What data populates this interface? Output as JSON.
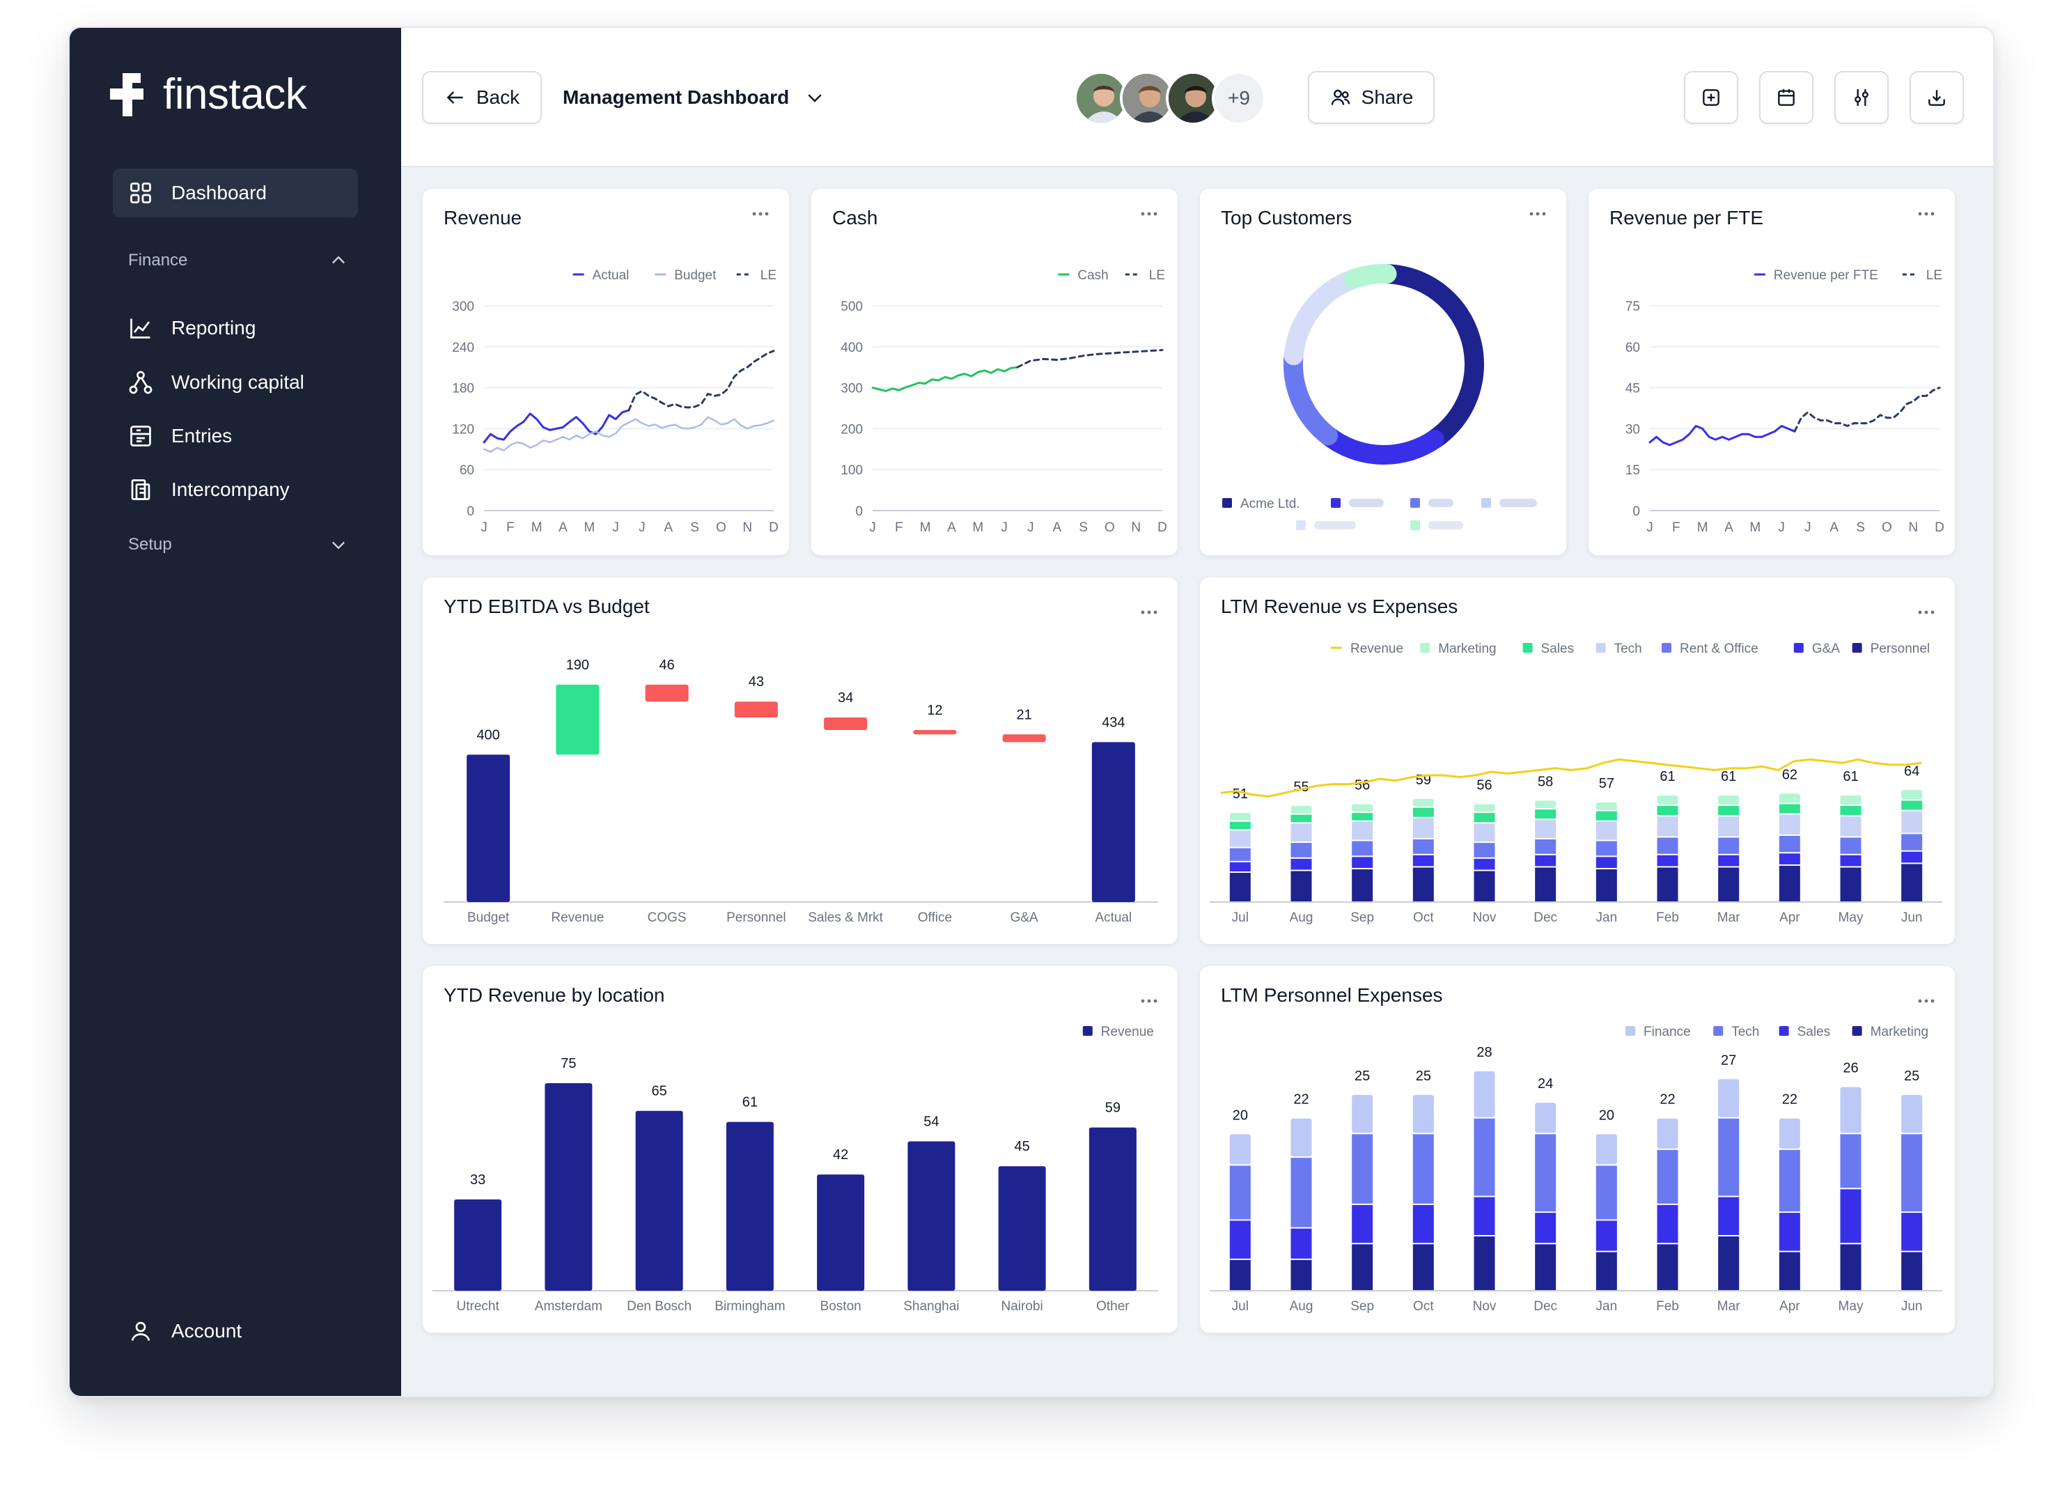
{
  "app": {
    "name": "finstack"
  },
  "sidebar": {
    "dashboard": "Dashboard",
    "finance": "Finance",
    "items": [
      "Reporting",
      "Working capital",
      "Entries",
      "Intercompany"
    ],
    "setup": "Setup",
    "account": "Account"
  },
  "topbar": {
    "back": "Back",
    "dashboard_name": "Management Dashboard",
    "collaborators_extra": "+9",
    "share": "Share",
    "actions": [
      "add-widget-icon",
      "calendar-icon",
      "filter-sliders-icon",
      "download-icon"
    ]
  },
  "colors": {
    "navy": "#1f2390",
    "indigo": "#3730e8",
    "periwinkle": "#6b79f0",
    "lavender": "#bcc7f7",
    "green": "#2ee28f",
    "mint": "#b4f5d3",
    "red": "#f95a5a",
    "yellow": "#f5cf1a",
    "light_blue": "#a9bcef"
  },
  "cards": {
    "revenue": {
      "title": "Revenue",
      "chart_data": {
        "type": "line",
        "title": "Revenue",
        "legend": [
          "Actual",
          "Budget",
          "LE"
        ],
        "ylim": [
          0,
          300
        ],
        "yticks": [
          0,
          60,
          120,
          180,
          240,
          300
        ],
        "xticks": [
          "J",
          "F",
          "M",
          "A",
          "M",
          "J",
          "J",
          "A",
          "S",
          "O",
          "N",
          "D"
        ],
        "series": [
          {
            "name": "Actual",
            "x": [
              0,
              0.25,
              0.5,
              0.75,
              1,
              1.25,
              1.5,
              1.75,
              2,
              2.25,
              2.5,
              2.75,
              3,
              3.25,
              3.5,
              3.75,
              4,
              4.25,
              4.5,
              4.75,
              5,
              5.25,
              5.5
            ],
            "values": [
              100,
              112,
              106,
              104,
              116,
              124,
              130,
              142,
              134,
              122,
              118,
              120,
              122,
              130,
              137,
              128,
              116,
              112,
              123,
              140,
              134,
              144,
              147
            ]
          },
          {
            "name": "Budget",
            "x": [
              0,
              0.25,
              0.5,
              0.75,
              1,
              1.25,
              1.5,
              1.75,
              2,
              2.25,
              2.5,
              2.75,
              3,
              3.25,
              3.5,
              3.75,
              4,
              4.25,
              4.5,
              4.75,
              5,
              5.25,
              5.5,
              5.75,
              6,
              6.25,
              6.5,
              6.75,
              7,
              7.25,
              7.5,
              7.75,
              8,
              8.25,
              8.5,
              8.75,
              9,
              9.25,
              9.5,
              9.75,
              10,
              10.25,
              10.5,
              10.75,
              11
            ],
            "values": [
              90,
              86,
              92,
              88,
              96,
              100,
              98,
              92,
              96,
              103,
              100,
              104,
              108,
              104,
              110,
              106,
              112,
              116,
              110,
              108,
              113,
              124,
              129,
              134,
              128,
              124,
              126,
              121,
              124,
              126,
              121,
              120,
              122,
              126,
              137,
              132,
              126,
              128,
              134,
              125,
              120,
              124,
              125,
              128,
              132
            ]
          },
          {
            "name": "LE",
            "x": [
              5.5,
              5.75,
              6,
              6.25,
              6.5,
              6.75,
              7,
              7.25,
              7.5,
              7.75,
              8,
              8.25,
              8.5,
              8.75,
              9,
              9.25,
              9.5,
              9.75,
              10,
              10.25,
              10.5,
              10.75,
              11
            ],
            "values": [
              147,
              170,
              175,
              168,
              164,
              158,
              153,
              156,
              152,
              151,
              152,
              156,
              171,
              168,
              170,
              178,
              196,
              205,
              210,
              218,
              224,
              230,
              234
            ]
          }
        ]
      }
    },
    "cash": {
      "title": "Cash",
      "chart_data": {
        "type": "line",
        "title": "Cash",
        "legend": [
          "Cash",
          "LE"
        ],
        "ylim": [
          0,
          500
        ],
        "yticks": [
          0,
          100,
          200,
          300,
          400,
          500
        ],
        "xticks": [
          "J",
          "F",
          "M",
          "A",
          "M",
          "J",
          "J",
          "A",
          "S",
          "O",
          "N",
          "D"
        ],
        "series": [
          {
            "name": "Cash",
            "x": [
              0,
              0.25,
              0.5,
              0.75,
              1,
              1.25,
              1.5,
              1.75,
              2,
              2.25,
              2.5,
              2.75,
              3,
              3.25,
              3.5,
              3.75,
              4,
              4.25,
              4.5,
              4.75,
              5,
              5.25,
              5.5
            ],
            "values": [
              300,
              296,
              292,
              298,
              294,
              301,
              306,
              312,
              310,
              320,
              318,
              326,
              322,
              330,
              334,
              328,
              338,
              342,
              336,
              345,
              340,
              348,
              350
            ]
          },
          {
            "name": "LE",
            "x": [
              5.5,
              6,
              6.5,
              7,
              7.5,
              8,
              8.5,
              9,
              9.5,
              10,
              10.5,
              11
            ],
            "values": [
              350,
              366,
              370,
              368,
              372,
              378,
              382,
              384,
              386,
              388,
              390,
              392
            ]
          }
        ]
      }
    },
    "top_customers": {
      "title": "Top Customers",
      "chart_data": {
        "type": "pie",
        "title": "Top Customers",
        "legend": [
          "Acme Ltd."
        ],
        "values": [
          40,
          20,
          16,
          18,
          6
        ],
        "slice_colors": [
          "#1f2390",
          "#3730e8",
          "#6b79f0",
          "#d5ddf9",
          "#b4f5d3"
        ]
      }
    },
    "revenue_per_fte": {
      "title": "Revenue per FTE",
      "chart_data": {
        "type": "line",
        "title": "Revenue per FTE",
        "legend": [
          "Revenue per FTE",
          "LE"
        ],
        "ylim": [
          0,
          75
        ],
        "yticks": [
          0,
          15,
          30,
          45,
          60,
          75
        ],
        "xticks": [
          "J",
          "F",
          "M",
          "A",
          "M",
          "J",
          "J",
          "A",
          "S",
          "O",
          "N",
          "D"
        ],
        "series": [
          {
            "name": "Revenue per FTE",
            "x": [
              0,
              0.25,
              0.5,
              0.75,
              1,
              1.25,
              1.5,
              1.75,
              2,
              2.25,
              2.5,
              2.75,
              3,
              3.25,
              3.5,
              3.75,
              4,
              4.25,
              4.5,
              4.75,
              5,
              5.25,
              5.5
            ],
            "values": [
              25,
              27,
              25,
              24,
              25,
              26,
              28,
              31,
              30,
              27,
              26,
              27,
              26,
              27,
              28,
              28,
              27,
              27,
              28,
              29,
              31,
              30,
              29
            ]
          },
          {
            "name": "LE",
            "x": [
              5.5,
              5.75,
              6,
              6.25,
              6.5,
              6.75,
              7,
              7.25,
              7.5,
              7.75,
              8,
              8.25,
              8.5,
              8.75,
              9,
              9.25,
              9.5,
              9.75,
              10,
              10.25,
              10.5,
              10.75,
              11
            ],
            "values": [
              29,
              34,
              36,
              34,
              33,
              33,
              32,
              32,
              31,
              32,
              32,
              32,
              33,
              35,
              34,
              34,
              36,
              39,
              40,
              42,
              42,
              44,
              45
            ]
          }
        ]
      }
    },
    "ytd_ebitda": {
      "title": "YTD EBITDA vs Budget",
      "chart_data": {
        "type": "bar",
        "title": "YTD EBITDA vs Budget",
        "categories": [
          "Budget",
          "Revenue",
          "COGS",
          "Personnel",
          "Sales & Mrkt",
          "Office",
          "G&A",
          "Actual"
        ],
        "values": [
          400,
          190,
          46,
          43,
          34,
          12,
          21,
          434
        ],
        "kind": [
          "total",
          "increase",
          "decrease",
          "decrease",
          "decrease",
          "decrease",
          "decrease",
          "total"
        ],
        "ylim": [
          0,
          620
        ]
      }
    },
    "ltm_rev_exp": {
      "title": "LTM Revenue vs Expenses",
      "chart_data": {
        "type": "bar",
        "title": "LTM Revenue vs Expenses",
        "legend": [
          "Revenue",
          "Marketing",
          "Sales",
          "Tech",
          "Rent & Office",
          "G&A",
          "Personnel"
        ],
        "categories": [
          "Jul",
          "Aug",
          "Sep",
          "Oct",
          "Nov",
          "Dec",
          "Jan",
          "Feb",
          "Mar",
          "Apr",
          "May",
          "Jun"
        ],
        "totals": [
          51,
          55,
          56,
          59,
          56,
          58,
          57,
          61,
          61,
          62,
          61,
          64
        ],
        "series": [
          {
            "name": "Personnel",
            "values": [
              17,
              18,
              19,
              20,
              18,
              20,
              19,
              20,
              20,
              21,
              20,
              22
            ]
          },
          {
            "name": "G&A",
            "values": [
              6,
              7,
              7,
              7,
              7,
              7,
              7,
              7,
              7,
              7,
              7,
              7
            ]
          },
          {
            "name": "Rent & Office",
            "values": [
              8,
              9,
              9,
              9,
              9,
              9,
              9,
              10,
              10,
              10,
              10,
              10
            ]
          },
          {
            "name": "Tech",
            "values": [
              10,
              11,
              11,
              12,
              11,
              11,
              11,
              12,
              12,
              12,
              12,
              13
            ]
          },
          {
            "name": "Sales",
            "values": [
              5,
              5,
              5,
              6,
              6,
              6,
              6,
              6,
              6,
              6,
              6,
              6
            ]
          },
          {
            "name": "Marketing",
            "values": [
              5,
              5,
              5,
              5,
              5,
              5,
              5,
              6,
              6,
              6,
              6,
              6
            ]
          }
        ],
        "revenue_line": {
          "name": "Revenue",
          "x": [
            0,
            0.25,
            0.5,
            0.75,
            1,
            1.25,
            1.5,
            1.75,
            2,
            2.25,
            2.5,
            2.75,
            3,
            3.25,
            3.5,
            3.75,
            4,
            4.25,
            4.5,
            4.75,
            5,
            5.25,
            5.5,
            5.75,
            6,
            6.25,
            6.5,
            6.75,
            7,
            7.25,
            7.5,
            7.75,
            8,
            8.25,
            8.5,
            8.75,
            9,
            9.25,
            9.5,
            9.75,
            10,
            10.25,
            10.5,
            10.75,
            11
          ],
          "values": [
            62,
            63,
            61,
            60,
            62,
            64,
            66,
            67,
            67,
            68,
            70,
            69,
            71,
            72,
            72,
            71,
            72,
            74,
            73,
            74,
            75,
            76,
            75,
            76,
            79,
            81,
            80,
            79,
            78,
            77,
            76,
            75,
            76,
            76,
            77,
            75,
            80,
            81,
            80,
            79,
            81,
            79,
            78,
            78,
            79
          ]
        },
        "ylim": [
          0,
          110
        ]
      }
    },
    "ytd_rev_location": {
      "title": "YTD Revenue by location",
      "chart_data": {
        "type": "bar",
        "title": "YTD Revenue by location",
        "legend": [
          "Revenue"
        ],
        "categories": [
          "Utrecht",
          "Amsterdam",
          "Den Bosch",
          "Birmingham",
          "Boston",
          "Shanghai",
          "Nairobi",
          "Other"
        ],
        "values": [
          33,
          75,
          65,
          61,
          42,
          54,
          45,
          59
        ],
        "ylim": [
          0,
          75
        ]
      }
    },
    "ltm_personnel": {
      "title": "LTM Personnel Expenses",
      "chart_data": {
        "type": "bar",
        "title": "LTM Personnel Expenses",
        "legend": [
          "Finance",
          "Tech",
          "Sales",
          "Marketing"
        ],
        "categories": [
          "Jul",
          "Aug",
          "Sep",
          "Oct",
          "Nov",
          "Dec",
          "Jan",
          "Feb",
          "Mar",
          "Apr",
          "May",
          "Jun"
        ],
        "totals": [
          20,
          22,
          25,
          25,
          28,
          24,
          20,
          22,
          27,
          22,
          26,
          25
        ],
        "series": [
          {
            "name": "Marketing",
            "values": [
              4,
              4,
              6,
              6,
              7,
              6,
              5,
              6,
              7,
              5,
              6,
              5
            ]
          },
          {
            "name": "Sales",
            "values": [
              5,
              4,
              5,
              5,
              5,
              4,
              4,
              5,
              5,
              5,
              7,
              5
            ]
          },
          {
            "name": "Tech",
            "values": [
              7,
              9,
              9,
              9,
              10,
              10,
              7,
              7,
              10,
              8,
              7,
              10
            ]
          },
          {
            "name": "Finance",
            "values": [
              4,
              5,
              5,
              5,
              6,
              4,
              4,
              4,
              5,
              4,
              6,
              5
            ]
          }
        ],
        "ylim": [
          0,
          28
        ]
      }
    }
  }
}
